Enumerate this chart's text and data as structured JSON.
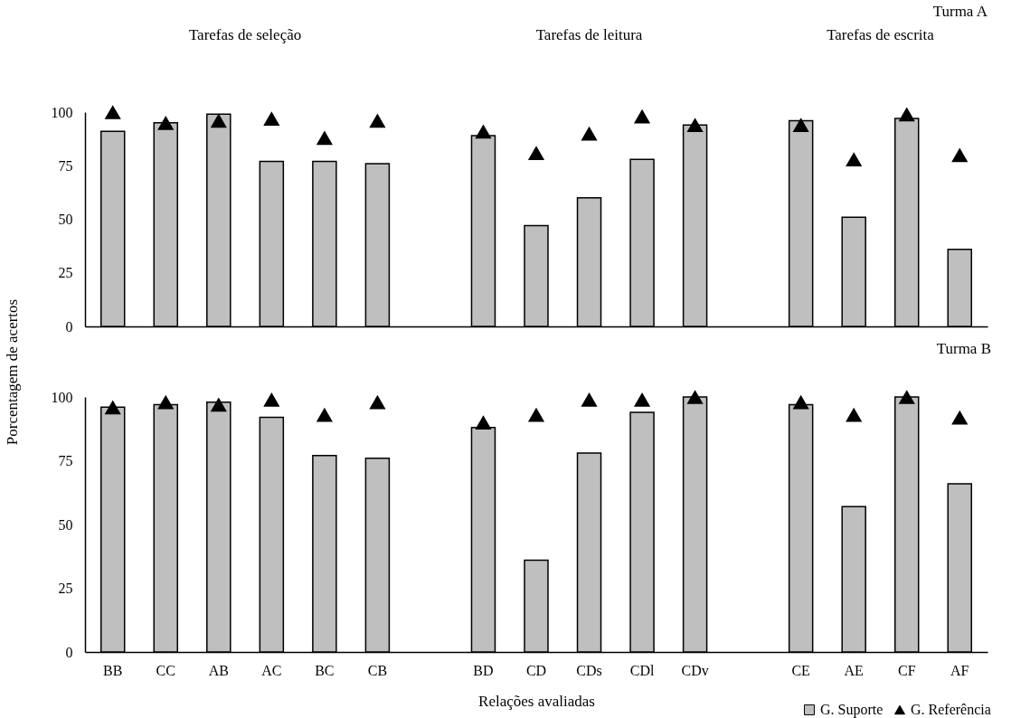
{
  "chart_data": [
    {
      "type": "bar",
      "title": "Turma A",
      "ylabel": "Porcentagem de acertos",
      "annotations": [
        "Tarefas de seleção",
        "Tarefas de leitura",
        "Tarefas de escrita"
      ],
      "categories": [
        null,
        null,
        null,
        null,
        null,
        null,
        null,
        null,
        null,
        null,
        null,
        null,
        null,
        null,
        null,
        null,
        null
      ],
      "series": [
        {
          "color": "#bfbfbf",
          "values": [
            91,
            95,
            99,
            77,
            77,
            76,
            null,
            89,
            47,
            60,
            78,
            94,
            null,
            96,
            51,
            97,
            36
          ]
        },
        {
          "type": "scatter",
          "marker": "triangle",
          "color": "#000000",
          "values": [
            100,
            95,
            96,
            97,
            88,
            96,
            null,
            91,
            81,
            90,
            98,
            94,
            null,
            94,
            78,
            99,
            80
          ]
        }
      ],
      "ylim": [
        0,
        100
      ],
      "yticks": [
        0,
        25,
        50,
        75,
        100
      ],
      "grid": false,
      "legend": false,
      "tick_labels": "y"
    },
    {
      "type": "bar",
      "title": "Turma B",
      "xlabel": "Relações avaliadas",
      "categories": [
        "BB",
        "CC",
        "AB",
        "AC",
        "BC",
        "CB",
        null,
        "BD",
        "CD",
        "CDs",
        "CDl",
        "CDv",
        null,
        "CE",
        "AE",
        "CF",
        "AF"
      ],
      "series": [
        {
          "name": "G. Suporte",
          "color": "#bfbfbf",
          "values": [
            96,
            97,
            98,
            92,
            77,
            76,
            null,
            88,
            36,
            78,
            94,
            100,
            null,
            97,
            57,
            100,
            66
          ]
        },
        {
          "name": "G. Referência",
          "type": "scatter",
          "marker": "triangle",
          "color": "#000000",
          "values": [
            96,
            98,
            97,
            99,
            93,
            98,
            null,
            90,
            93,
            99,
            99,
            100,
            null,
            98,
            93,
            100,
            92
          ]
        }
      ],
      "ylim": [
        0,
        100
      ],
      "yticks": [
        0,
        25,
        50,
        75,
        100
      ],
      "grid": false,
      "legend": "bottom right"
    }
  ]
}
